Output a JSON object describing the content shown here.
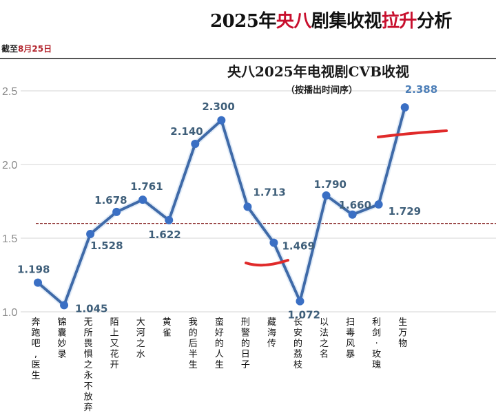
{
  "header": {
    "title_parts": [
      "2025年",
      "央八",
      "剧集收视",
      "拉升",
      "分析"
    ],
    "date_prefix": "截至",
    "date_value": "8月25日"
  },
  "chart_data": {
    "type": "line",
    "title": "央八2025年电视剧CVB收视",
    "subtitle": "（按播出时间序）",
    "xlabel": "",
    "ylabel": "",
    "ylim": [
      1.0,
      2.5
    ],
    "yticks": [
      "2.5",
      "2.0",
      "1.5",
      "1.0"
    ],
    "grid": true,
    "reference_line": 1.6,
    "categories": [
      "奔跑吧，医生",
      "锦囊妙录",
      "无所畏惧之永不放弃",
      "陌上又花开",
      "大河之水",
      "黄雀",
      "我的后半生",
      "蛮好的人生",
      "刑警的日子",
      "藏海传",
      "长安的荔枝",
      "以法之名",
      "扫毒风暴",
      "利剑·玫瑰",
      "生万物"
    ],
    "series": [
      {
        "name": "CVB收视",
        "values": [
          1.198,
          1.045,
          1.528,
          1.678,
          1.761,
          1.622,
          2.14,
          2.3,
          1.713,
          1.469,
          1.072,
          1.79,
          1.66,
          1.729,
          2.388
        ]
      }
    ],
    "value_labels": [
      "1.198",
      "1.045",
      "1.528",
      "1.678",
      "1.761",
      "1.622",
      "2.140",
      "2.300",
      "1.713",
      "1.469",
      "1.072",
      "1.790",
      "1.660",
      "1.729",
      "2.388"
    ],
    "colors": {
      "line": "#3f6aa8",
      "marker": "#3a6fc4",
      "label": "#3f5f7a",
      "reference": "#8b2c2c",
      "annotation": "#e02a2a",
      "grid": "#e4e4e4"
    }
  }
}
